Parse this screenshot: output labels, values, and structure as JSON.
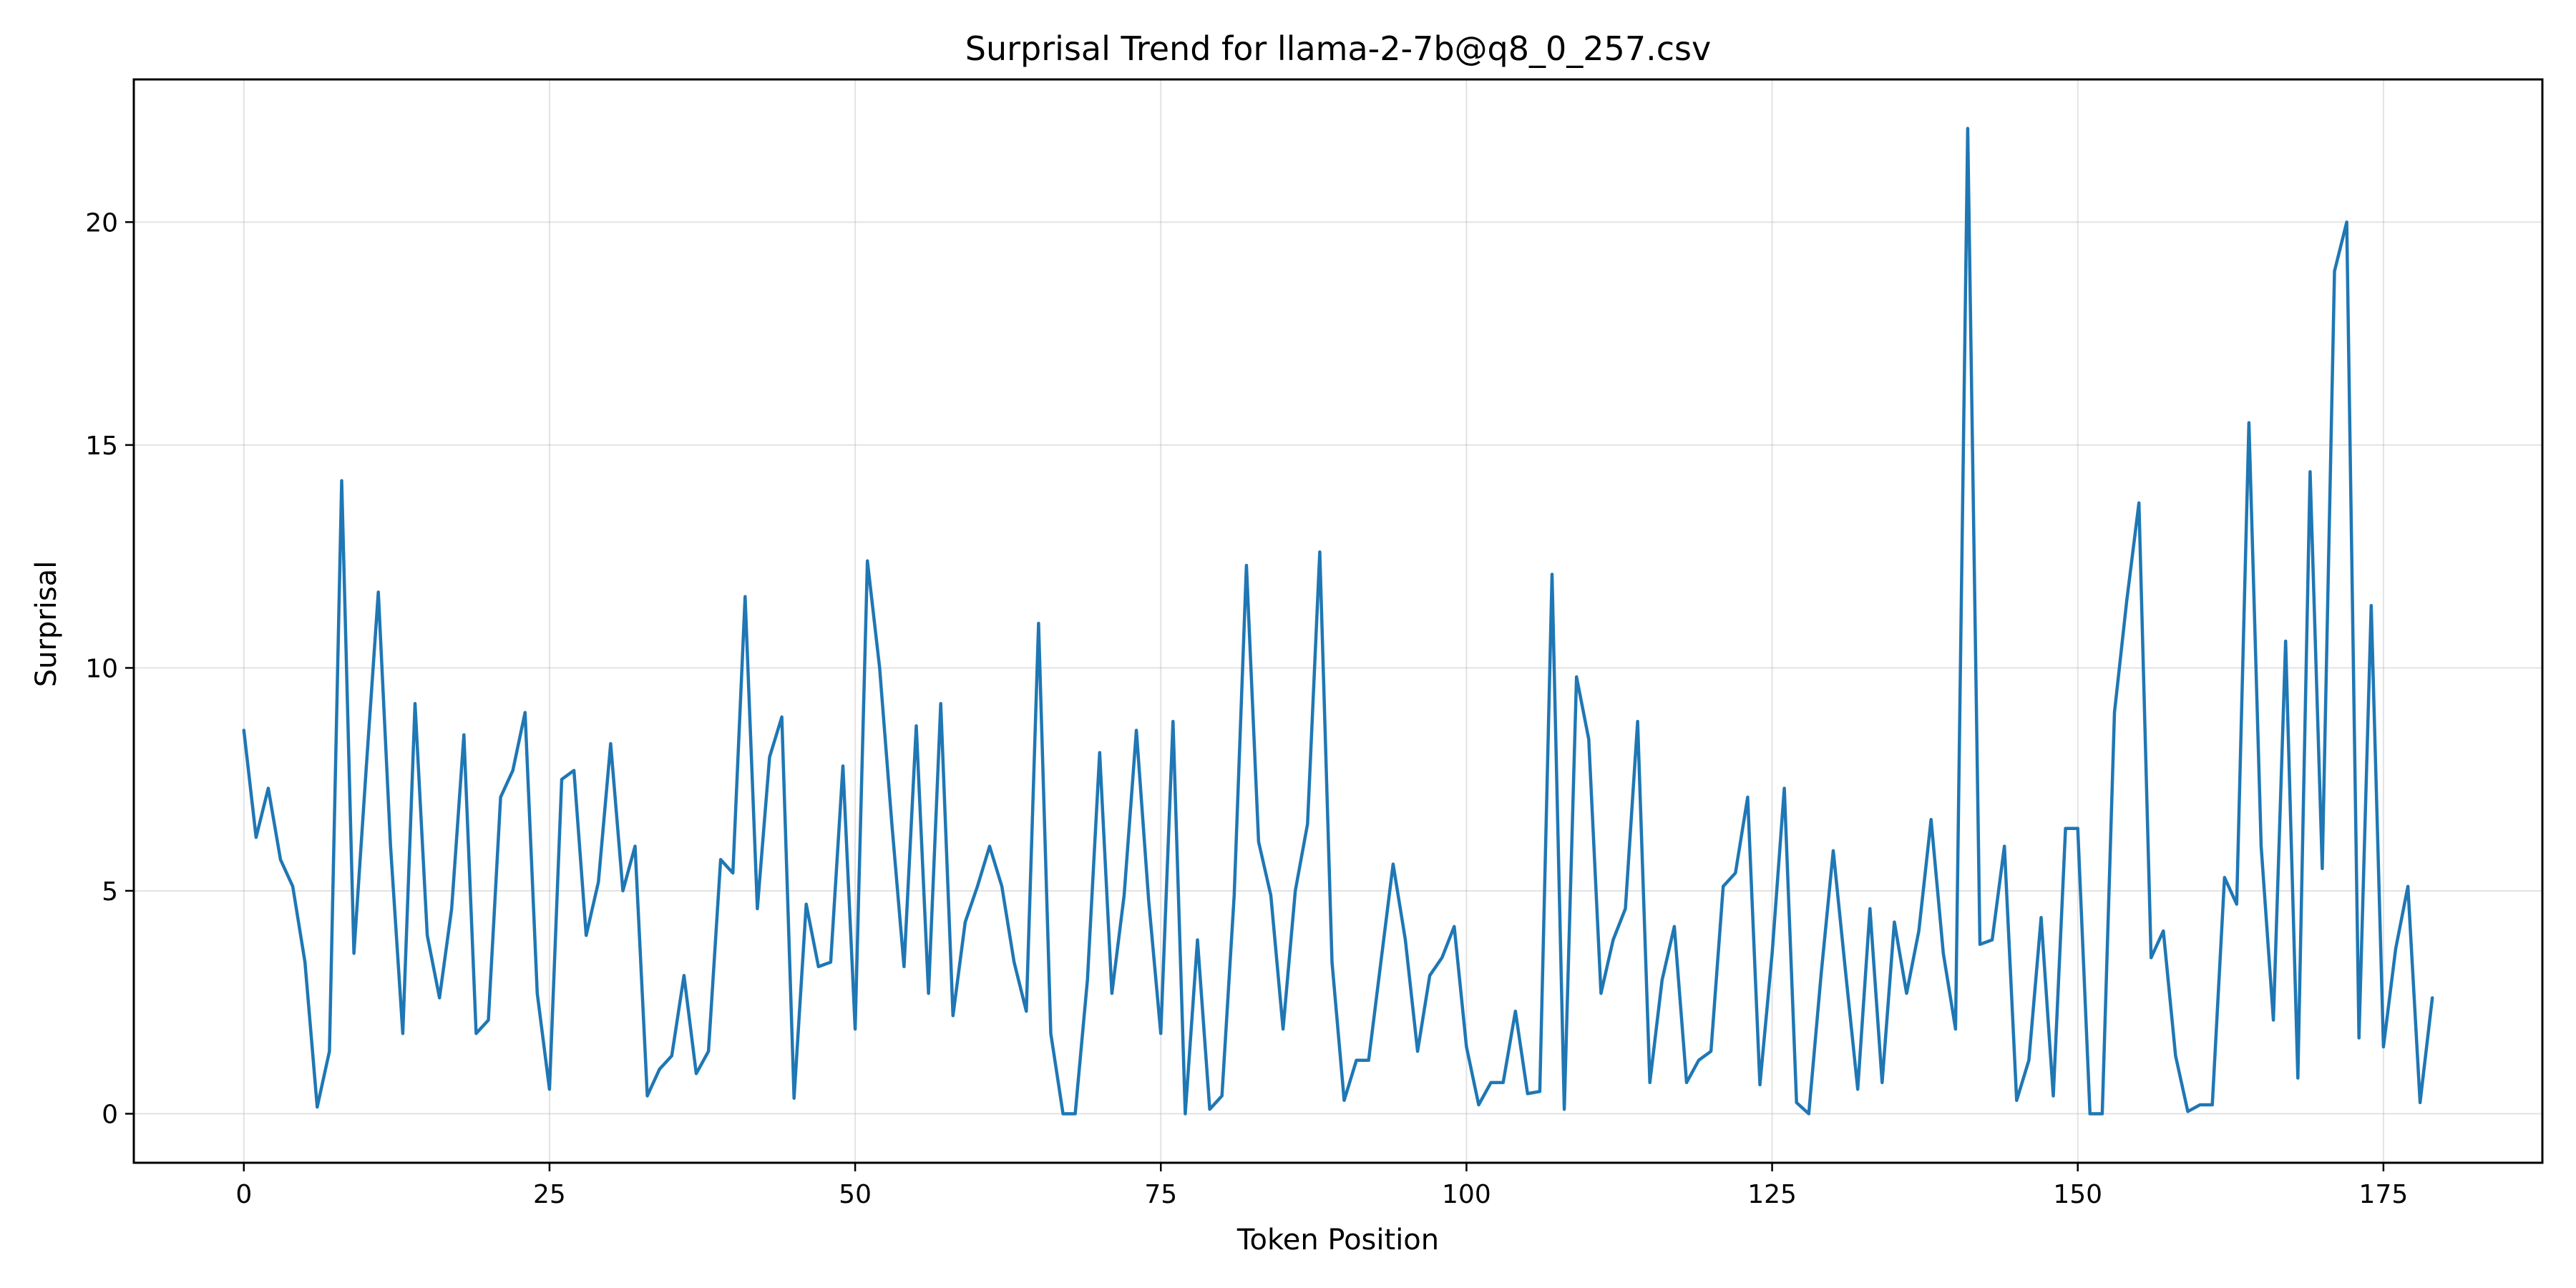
{
  "chart_data": {
    "type": "line",
    "title": "Surprisal Trend for llama-2-7b@q8_0_257.csv",
    "xlabel": "Token Position",
    "ylabel": "Surprisal",
    "xlim": [
      -9,
      188
    ],
    "ylim": [
      -1.1,
      23.2
    ],
    "xticks": [
      0,
      25,
      50,
      75,
      100,
      125,
      150,
      175
    ],
    "yticks": [
      0,
      5,
      10,
      15,
      20
    ],
    "grid": true,
    "legend": "none",
    "series": [
      {
        "color": "#1f77b4",
        "x_start": 0,
        "x_step": 1,
        "values": [
          8.6,
          6.2,
          7.3,
          5.7,
          5.1,
          3.4,
          0.15,
          1.4,
          14.2,
          3.6,
          7.7,
          11.7,
          6.0,
          1.8,
          9.2,
          4.0,
          2.6,
          4.6,
          8.5,
          1.8,
          2.1,
          7.1,
          7.7,
          9.0,
          2.7,
          0.55,
          7.5,
          7.7,
          4.0,
          5.2,
          8.3,
          5.0,
          6.0,
          0.4,
          1.0,
          1.3,
          3.1,
          0.9,
          1.4,
          5.7,
          5.4,
          11.6,
          4.6,
          8.0,
          8.9,
          0.35,
          4.7,
          3.3,
          3.4,
          7.8,
          1.9,
          12.4,
          10.0,
          6.5,
          3.3,
          8.7,
          2.7,
          9.2,
          2.2,
          4.3,
          5.1,
          6.0,
          5.1,
          3.4,
          2.3,
          11.0,
          1.8,
          0.0,
          0.0,
          3.0,
          8.1,
          2.7,
          4.9,
          8.6,
          4.8,
          1.8,
          8.8,
          0.0,
          3.9,
          0.1,
          0.4,
          4.9,
          12.3,
          6.1,
          4.9,
          1.9,
          5.0,
          6.5,
          12.6,
          3.4,
          0.3,
          1.2,
          1.2,
          3.4,
          5.6,
          3.9,
          1.4,
          3.1,
          3.5,
          4.2,
          1.5,
          0.2,
          0.7,
          0.7,
          2.3,
          0.45,
          0.5,
          12.1,
          0.1,
          9.8,
          8.4,
          2.7,
          3.9,
          4.6,
          8.8,
          0.7,
          3.0,
          4.2,
          0.7,
          1.2,
          1.4,
          5.1,
          5.4,
          7.1,
          0.65,
          3.6,
          7.3,
          0.25,
          0.0,
          3.1,
          5.9,
          3.2,
          0.55,
          4.6,
          0.7,
          4.3,
          2.7,
          4.1,
          6.6,
          3.6,
          1.9,
          22.1,
          3.8,
          3.9,
          6.0,
          0.3,
          1.2,
          4.4,
          0.4,
          6.4,
          6.4,
          0.0,
          0.0,
          9.0,
          11.5,
          13.7,
          3.5,
          4.1,
          1.3,
          0.05,
          0.2,
          0.2,
          5.3,
          4.7,
          15.5,
          6.0,
          2.1,
          10.6,
          0.8,
          14.4,
          5.5,
          18.9,
          20.0,
          1.7,
          11.4,
          1.5,
          3.7,
          5.1,
          0.25,
          2.6
        ]
      }
    ]
  }
}
